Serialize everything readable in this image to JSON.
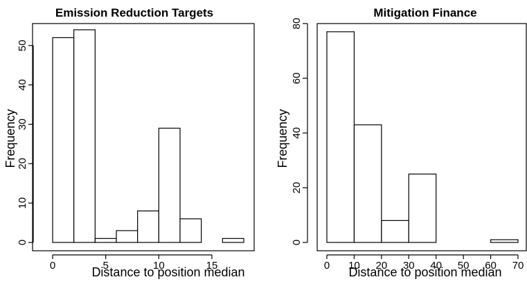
{
  "chart_data": [
    {
      "type": "bar",
      "title": "Emission Reduction Targets",
      "xlabel": "Distance to position median",
      "ylabel": "Frequency",
      "bin_edges": [
        0,
        2,
        4,
        6,
        8,
        10,
        12,
        14,
        16,
        18
      ],
      "values": [
        52,
        54,
        1,
        3,
        8,
        29,
        6,
        0,
        1
      ],
      "xlim": [
        0,
        18
      ],
      "ylim": [
        0,
        54
      ],
      "xticks": [
        0,
        5,
        10,
        15
      ],
      "yticks": [
        0,
        10,
        20,
        30,
        40,
        50
      ],
      "grid": false
    },
    {
      "type": "bar",
      "title": "Mitigation Finance",
      "xlabel": "Distance to position median",
      "ylabel": "Frequency",
      "bin_edges": [
        0,
        10,
        20,
        30,
        40,
        50,
        60,
        70
      ],
      "values": [
        77,
        43,
        8,
        25,
        0,
        0,
        1
      ],
      "xlim": [
        0,
        70
      ],
      "ylim": [
        0,
        80
      ],
      "xticks": [
        0,
        10,
        20,
        30,
        40,
        50,
        60,
        70
      ],
      "yticks": [
        0,
        20,
        40,
        60,
        80
      ],
      "grid": false
    }
  ]
}
